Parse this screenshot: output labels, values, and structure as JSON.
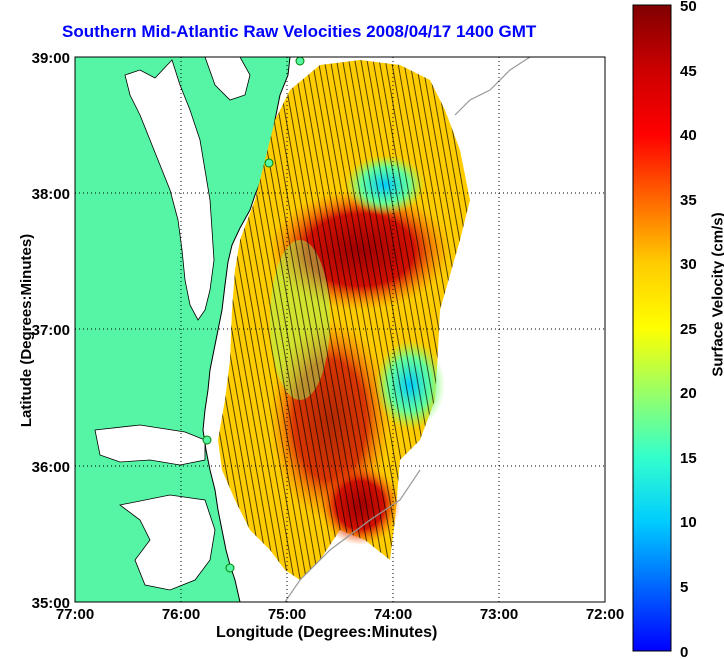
{
  "title": "Southern Mid-Atlantic Raw Velocities 2008/04/17 1400 GMT",
  "xlabel": "Longitude (Degrees:Minutes)",
  "ylabel": "Latitude (Degrees:Minutes)",
  "colorbar": {
    "label": "Surface Velocity (cm/s)",
    "ticks": [
      "0",
      "5",
      "10",
      "15",
      "20",
      "25",
      "30",
      "35",
      "40",
      "45",
      "50"
    ],
    "colors": [
      "#0000ff",
      "#0066ff",
      "#00ccff",
      "#33ffcc",
      "#99ff66",
      "#ffff00",
      "#ffcc00",
      "#ff6600",
      "#ff0000",
      "#cc0000",
      "#800000"
    ]
  },
  "map": {
    "xticks": [
      "77:00",
      "76:00",
      "75:00",
      "74:00",
      "73:00",
      "72:00"
    ],
    "yticks": [
      "39:00",
      "38:00",
      "37:00",
      "36:00",
      "35:00"
    ],
    "land_color": "#55f5a5"
  }
}
